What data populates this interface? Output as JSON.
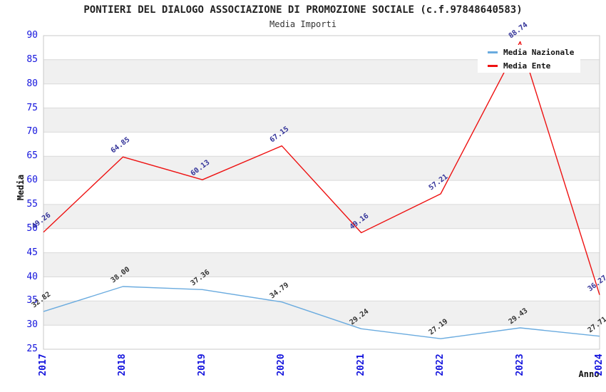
{
  "chart_data": {
    "type": "line",
    "title": "PONTIERI DEL DIALOGO ASSOCIAZIONE DI PROMOZIONE SOCIALE (c.f.97848640583)",
    "subtitle": "Media Importi",
    "xlabel": "Anno",
    "ylabel": "Media",
    "categories": [
      "2017",
      "2018",
      "2019",
      "2020",
      "2021",
      "2022",
      "2023",
      "2024"
    ],
    "series": [
      {
        "name": "Media Nazionale",
        "color": "#6aabdf",
        "label_color": "#333333",
        "values": [
          32.82,
          38.0,
          37.36,
          34.79,
          29.24,
          27.19,
          29.43,
          27.71
        ]
      },
      {
        "name": "Media Ente",
        "color": "#ee1111",
        "label_color": "#333399",
        "values": [
          49.26,
          64.85,
          60.13,
          67.15,
          49.16,
          57.21,
          88.74,
          36.27
        ]
      }
    ],
    "ylim": [
      25,
      90
    ],
    "ytick_step": 5,
    "yticks": [
      90,
      85,
      80,
      75,
      70,
      65,
      60,
      55,
      50,
      45,
      40,
      35,
      30,
      25
    ],
    "label_decimals": 2,
    "grid": "horizontal gridlines with alternating gray bands",
    "legend_position": "top-right",
    "colors": {
      "axis_tick_text": "#1414dd",
      "band_fill": "#f0f0f0",
      "grid_line": "#d9d9d9",
      "plot_border": "#c9c9c9",
      "legend_bg": "#ffffff"
    }
  }
}
